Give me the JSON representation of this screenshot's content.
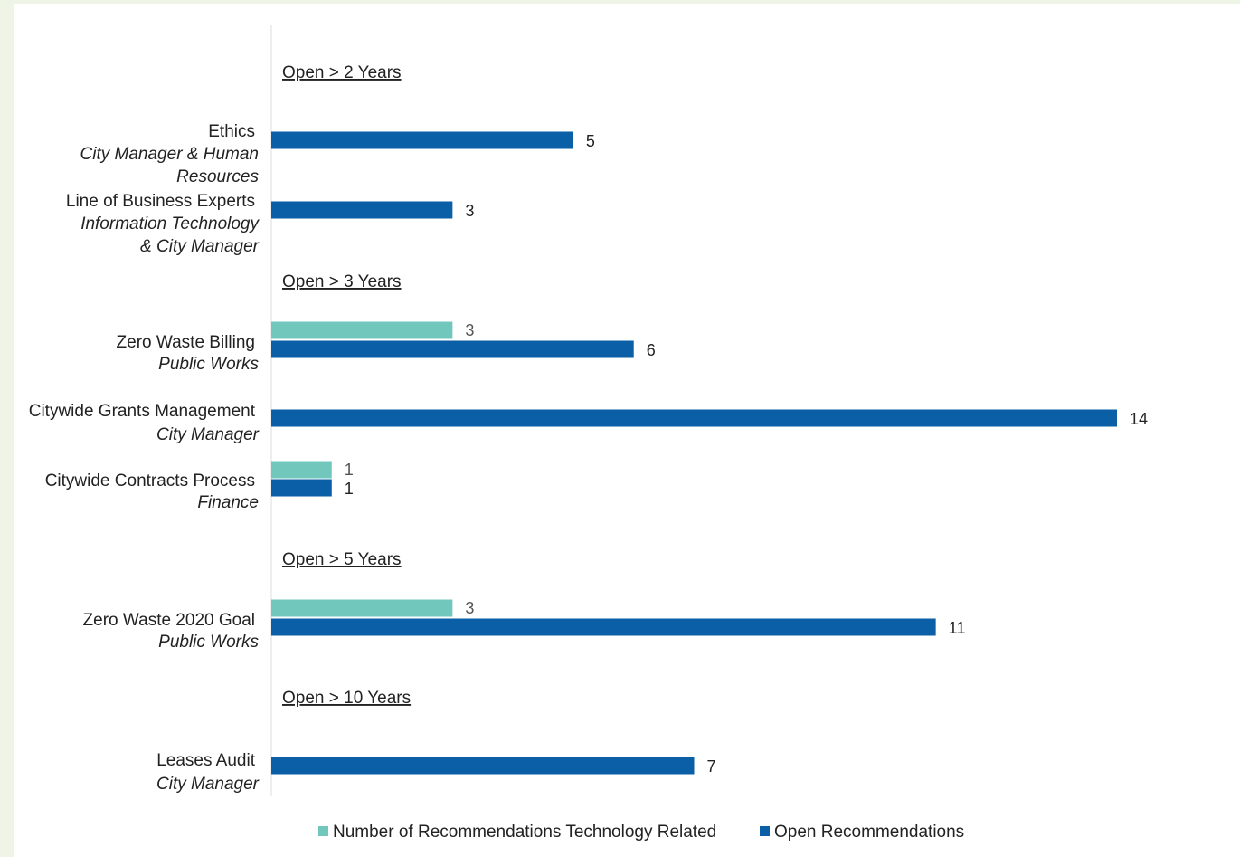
{
  "chart_data": {
    "type": "bar",
    "orientation": "horizontal",
    "series": [
      {
        "name": "Number of Recommendations Technology Related",
        "color": "#72c7bd"
      },
      {
        "name": "Open Recommendations",
        "color": "#0a5fa6"
      }
    ],
    "groups": [
      {
        "title": "Open > 2 Years",
        "items": [
          {
            "name": "Ethics",
            "dept_lines": [
              "City Manager & Human",
              "Resources"
            ],
            "tech": null,
            "open": 5
          },
          {
            "name": "Line of Business Experts",
            "dept_lines": [
              "Information Technology",
              "& City Manager"
            ],
            "tech": null,
            "open": 3
          }
        ]
      },
      {
        "title": "Open > 3 Years",
        "items": [
          {
            "name": "Zero Waste Billing",
            "dept_lines": [
              "Public Works"
            ],
            "tech": 3,
            "open": 6
          },
          {
            "name": "Citywide Grants Management",
            "dept_lines": [
              "City Manager"
            ],
            "tech": null,
            "open": 14
          },
          {
            "name": "Citywide Contracts Process",
            "dept_lines": [
              "Finance"
            ],
            "tech": 1,
            "open": 1
          }
        ]
      },
      {
        "title": "Open > 5 Years",
        "items": [
          {
            "name": "Zero Waste 2020 Goal",
            "dept_lines": [
              "Public Works"
            ],
            "tech": 3,
            "open": 11
          }
        ]
      },
      {
        "title": "Open > 10 Years",
        "items": [
          {
            "name": "Leases Audit",
            "dept_lines": [
              "City Manager"
            ],
            "tech": null,
            "open": 7
          }
        ]
      }
    ],
    "xlim": [
      0,
      14
    ],
    "grid": false,
    "legend_position": "bottom"
  }
}
